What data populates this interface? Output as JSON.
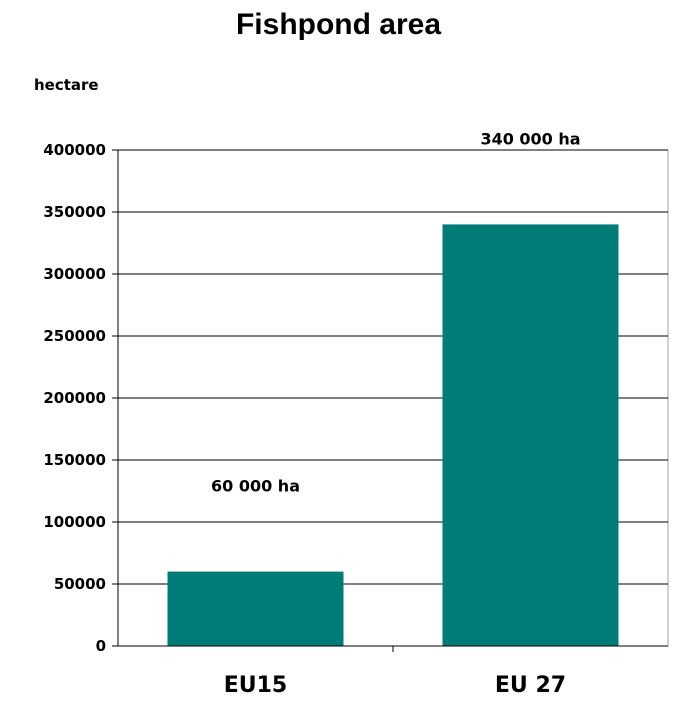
{
  "chart_data": {
    "type": "bar",
    "title": "Fishpond area",
    "ylabel": "hectare",
    "xlabel": "",
    "categories": [
      "EU15",
      "EU 27"
    ],
    "values": [
      60000,
      340000
    ],
    "data_labels": [
      "60 000 ha",
      "340 000 ha"
    ],
    "ylim": [
      0,
      400000
    ],
    "yticks": [
      0,
      50000,
      100000,
      150000,
      200000,
      250000,
      300000,
      350000,
      400000
    ],
    "ytick_labels": [
      "0",
      "50000",
      "100000",
      "150000",
      "200000",
      "250000",
      "300000",
      "350000",
      "400000"
    ],
    "grid": true,
    "bar_color": "#007b78"
  }
}
